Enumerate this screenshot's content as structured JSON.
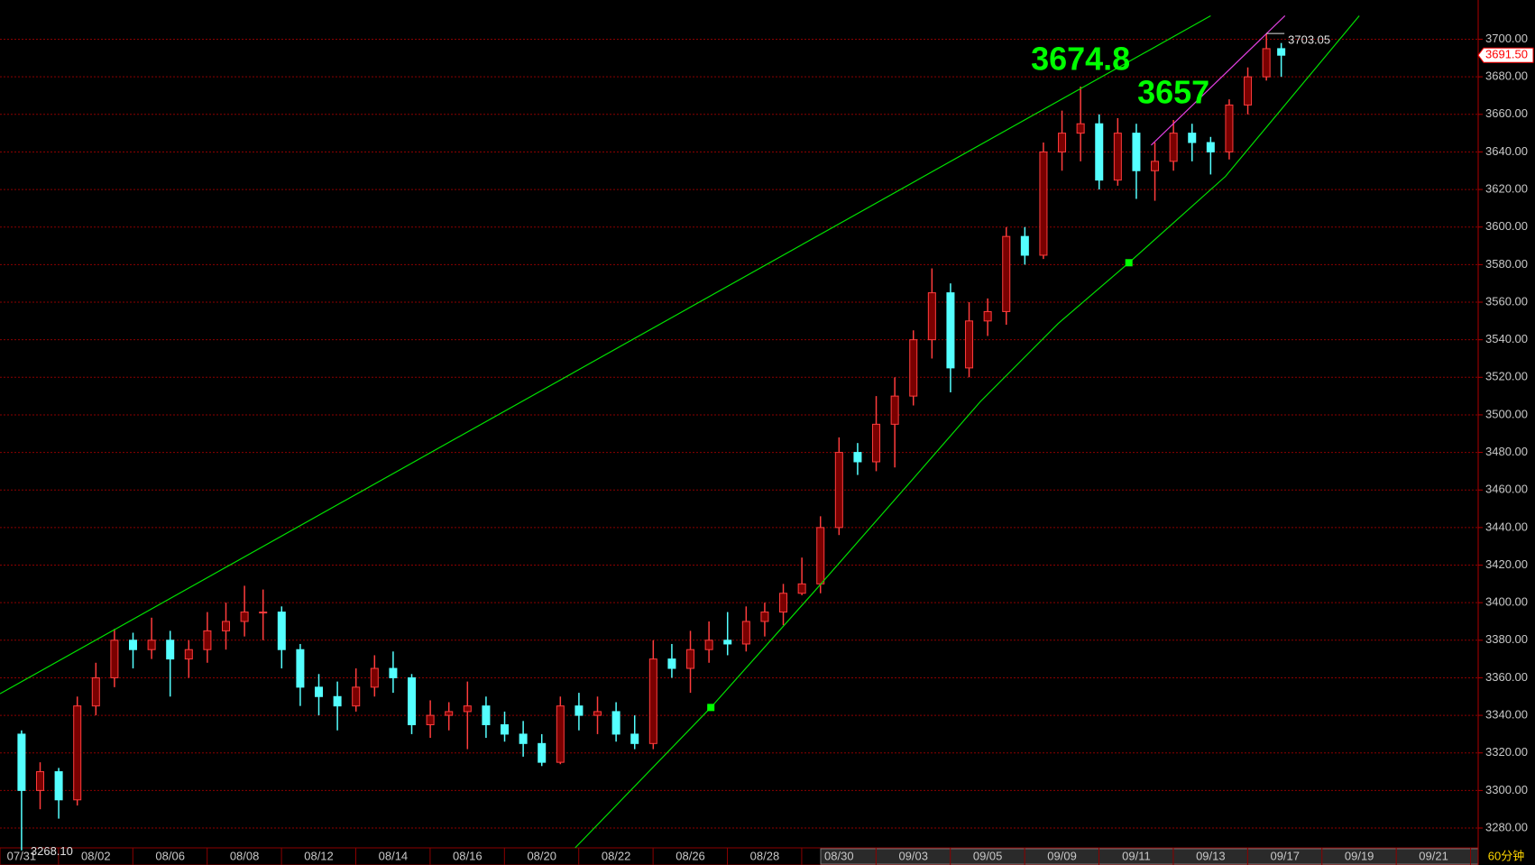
{
  "chart_data": {
    "type": "candlestick",
    "period": "60分钟",
    "x": [
      0,
      0.5,
      1,
      1.5,
      2,
      2.5,
      3,
      3.5,
      4,
      4.5,
      5,
      5.5,
      6,
      6.5,
      7,
      7.5,
      8,
      8.5,
      9,
      9.5,
      10,
      10.5,
      11,
      11.5,
      12,
      12.5,
      13,
      13.5,
      14,
      14.5,
      15,
      15.5,
      16,
      16.5,
      17,
      17.5,
      18,
      18.5,
      19,
      19.5,
      20,
      20.5,
      21,
      21.5,
      22,
      22.5,
      23,
      23.5,
      24,
      24.5,
      25,
      25.5,
      26,
      26.5,
      27,
      27.5,
      28,
      28.5,
      29,
      29.5,
      30,
      30.5,
      31,
      31.5,
      32,
      32.5,
      33,
      33.5,
      33.9
    ],
    "open": [
      3330,
      3300,
      3310,
      3295,
      3345,
      3360,
      3380,
      3375,
      3380,
      3370,
      3375,
      3385,
      3390,
      3395,
      3395,
      3375,
      3355,
      3350,
      3345,
      3355,
      3365,
      3360,
      3335,
      3340,
      3342,
      3345,
      3335,
      3330,
      3325,
      3315,
      3345,
      3340,
      3342,
      3330,
      3325,
      3370,
      3365,
      3375,
      3380,
      3378,
      3390,
      3395,
      3405,
      3410,
      3440,
      3480,
      3475,
      3495,
      3510,
      3540,
      3565,
      3525,
      3550,
      3555,
      3595,
      3585,
      3640,
      3650,
      3655,
      3625,
      3650,
      3630,
      3635,
      3650,
      3645,
      3640,
      3665,
      3680,
      3695
    ],
    "high": [
      3332,
      3315,
      3312,
      3350,
      3368,
      3386,
      3384,
      3392,
      3385,
      3380,
      3395,
      3400,
      3409,
      3407,
      3398,
      3378,
      3362,
      3358,
      3365,
      3372,
      3374,
      3362,
      3348,
      3347,
      3358,
      3350,
      3342,
      3337,
      3330,
      3350,
      3352,
      3350,
      3347,
      3340,
      3380,
      3378,
      3385,
      3390,
      3395,
      3398,
      3400,
      3410,
      3424,
      3446,
      3488,
      3485,
      3510,
      3520,
      3545,
      3578,
      3570,
      3560,
      3562,
      3600,
      3600,
      3645,
      3662,
      3674.8,
      3660,
      3658,
      3655,
      3645,
      3657,
      3655,
      3648,
      3668,
      3685,
      3703.05,
      3698
    ],
    "low": [
      3268.1,
      3290,
      3285,
      3292,
      3340,
      3355,
      3365,
      3370,
      3350,
      3360,
      3368,
      3375,
      3382,
      3380,
      3365,
      3345,
      3340,
      3332,
      3342,
      3350,
      3352,
      3330,
      3328,
      3332,
      3322,
      3328,
      3326,
      3318,
      3313,
      3314,
      3332,
      3330,
      3326,
      3322,
      3322,
      3360,
      3352,
      3368,
      3372,
      3374,
      3382,
      3388,
      3404,
      3405,
      3436,
      3468,
      3470,
      3472,
      3505,
      3530,
      3512,
      3520,
      3542,
      3548,
      3580,
      3583,
      3630,
      3635,
      3620,
      3622,
      3615,
      3614,
      3630,
      3635,
      3628,
      3636,
      3660,
      3678,
      3680
    ],
    "close": [
      3300,
      3310,
      3295,
      3345,
      3360,
      3380,
      3375,
      3380,
      3370,
      3375,
      3385,
      3390,
      3395,
      3395,
      3375,
      3355,
      3350,
      3345,
      3355,
      3365,
      3360,
      3335,
      3340,
      3342,
      3345,
      3335,
      3330,
      3325,
      3315,
      3345,
      3340,
      3342,
      3330,
      3325,
      3370,
      3365,
      3375,
      3380,
      3378,
      3390,
      3395,
      3405,
      3410,
      3440,
      3480,
      3475,
      3495,
      3510,
      3540,
      3565,
      3525,
      3550,
      3555,
      3595,
      3585,
      3640,
      3650,
      3655,
      3625,
      3650,
      3630,
      3635,
      3650,
      3645,
      3640,
      3665,
      3680,
      3695,
      3691.5
    ],
    "up_color": "#ff3c3c",
    "down_color": "#54ffff",
    "xlim": [
      -0.58,
      39.2
    ],
    "xticks": [
      {
        "value": 0,
        "label": "07/31"
      },
      {
        "value": 2,
        "label": "08/02"
      },
      {
        "value": 4,
        "label": "08/06"
      },
      {
        "value": 6,
        "label": "08/08"
      },
      {
        "value": 8,
        "label": "08/12"
      },
      {
        "value": 10,
        "label": "08/14"
      },
      {
        "value": 12,
        "label": "08/16"
      },
      {
        "value": 14,
        "label": "08/20"
      },
      {
        "value": 16,
        "label": "08/22"
      },
      {
        "value": 18,
        "label": "08/26"
      },
      {
        "value": 20,
        "label": "08/28"
      },
      {
        "value": 22,
        "label": "08/30"
      },
      {
        "value": 24,
        "label": "09/03"
      },
      {
        "value": 26,
        "label": "09/05"
      },
      {
        "value": 28,
        "label": "09/09"
      },
      {
        "value": 30,
        "label": "09/11"
      },
      {
        "value": 32,
        "label": "09/13"
      },
      {
        "value": 34,
        "label": "09/17"
      },
      {
        "value": 36,
        "label": "09/19"
      },
      {
        "value": 38,
        "label": "09/21"
      }
    ],
    "ylim": [
      3270.4,
      3720.9
    ],
    "yticks": [
      {
        "value": 3280,
        "label": "3280.00"
      },
      {
        "value": 3300,
        "label": "3300.00"
      },
      {
        "value": 3320,
        "label": "3320.00"
      },
      {
        "value": 3340,
        "label": "3340.00"
      },
      {
        "value": 3360,
        "label": "3360.00"
      },
      {
        "value": 3380,
        "label": "3380.00"
      },
      {
        "value": 3400,
        "label": "3400.00"
      },
      {
        "value": 3420,
        "label": "3420.00"
      },
      {
        "value": 3440,
        "label": "3440.00"
      },
      {
        "value": 3460,
        "label": "3460.00"
      },
      {
        "value": 3480,
        "label": "3480.00"
      },
      {
        "value": 3500,
        "label": "3500.00"
      },
      {
        "value": 3520,
        "label": "3520.00"
      },
      {
        "value": 3540,
        "label": "3540.00"
      },
      {
        "value": 3560,
        "label": "3560.00"
      },
      {
        "value": 3580,
        "label": "3580.00"
      },
      {
        "value": 3600,
        "label": "3600.00"
      },
      {
        "value": 3620,
        "label": "3620.00"
      },
      {
        "value": 3640,
        "label": "3640.00"
      },
      {
        "value": 3660,
        "label": "3660.00"
      },
      {
        "value": 3680,
        "label": "3680.00"
      },
      {
        "value": 3700,
        "label": "3700.00"
      }
    ],
    "grid": true,
    "grid_color": "#8b0000",
    "last_price": {
      "value": 3691.5,
      "label": "3691.50"
    },
    "low_label": {
      "x": 0,
      "value": 3268.1,
      "label": "3268.10"
    },
    "high_label": {
      "x": 33.5,
      "value": 3703.05,
      "label": "3703.05"
    },
    "annotations": [
      {
        "x": 28.5,
        "value": 3674.8,
        "label": "3674.8"
      },
      {
        "x": 31,
        "value": 3657,
        "label": "3657"
      }
    ],
    "trendlines": [
      {
        "color": "#00e000",
        "x": [
          -0.58,
          32
        ],
        "y": [
          3351.5,
          3712.5
        ]
      },
      {
        "color": "#00e000",
        "x": [
          14.9,
          18.55,
          21.3,
          23.96,
          25.8,
          27.9,
          29.8,
          32.4,
          36
        ],
        "y": [
          3269.5,
          3344.2,
          3405.2,
          3465.2,
          3507,
          3548.7,
          3581,
          3627,
          3712.5
        ]
      },
      {
        "color": "#e040e0",
        "x": [
          30.4,
          34
        ],
        "y": [
          3643.6,
          3712.5
        ]
      }
    ],
    "markers": {
      "color": "#00ff00",
      "x": [
        18.55,
        29.8
      ],
      "y": [
        3344.2,
        3581
      ]
    }
  }
}
